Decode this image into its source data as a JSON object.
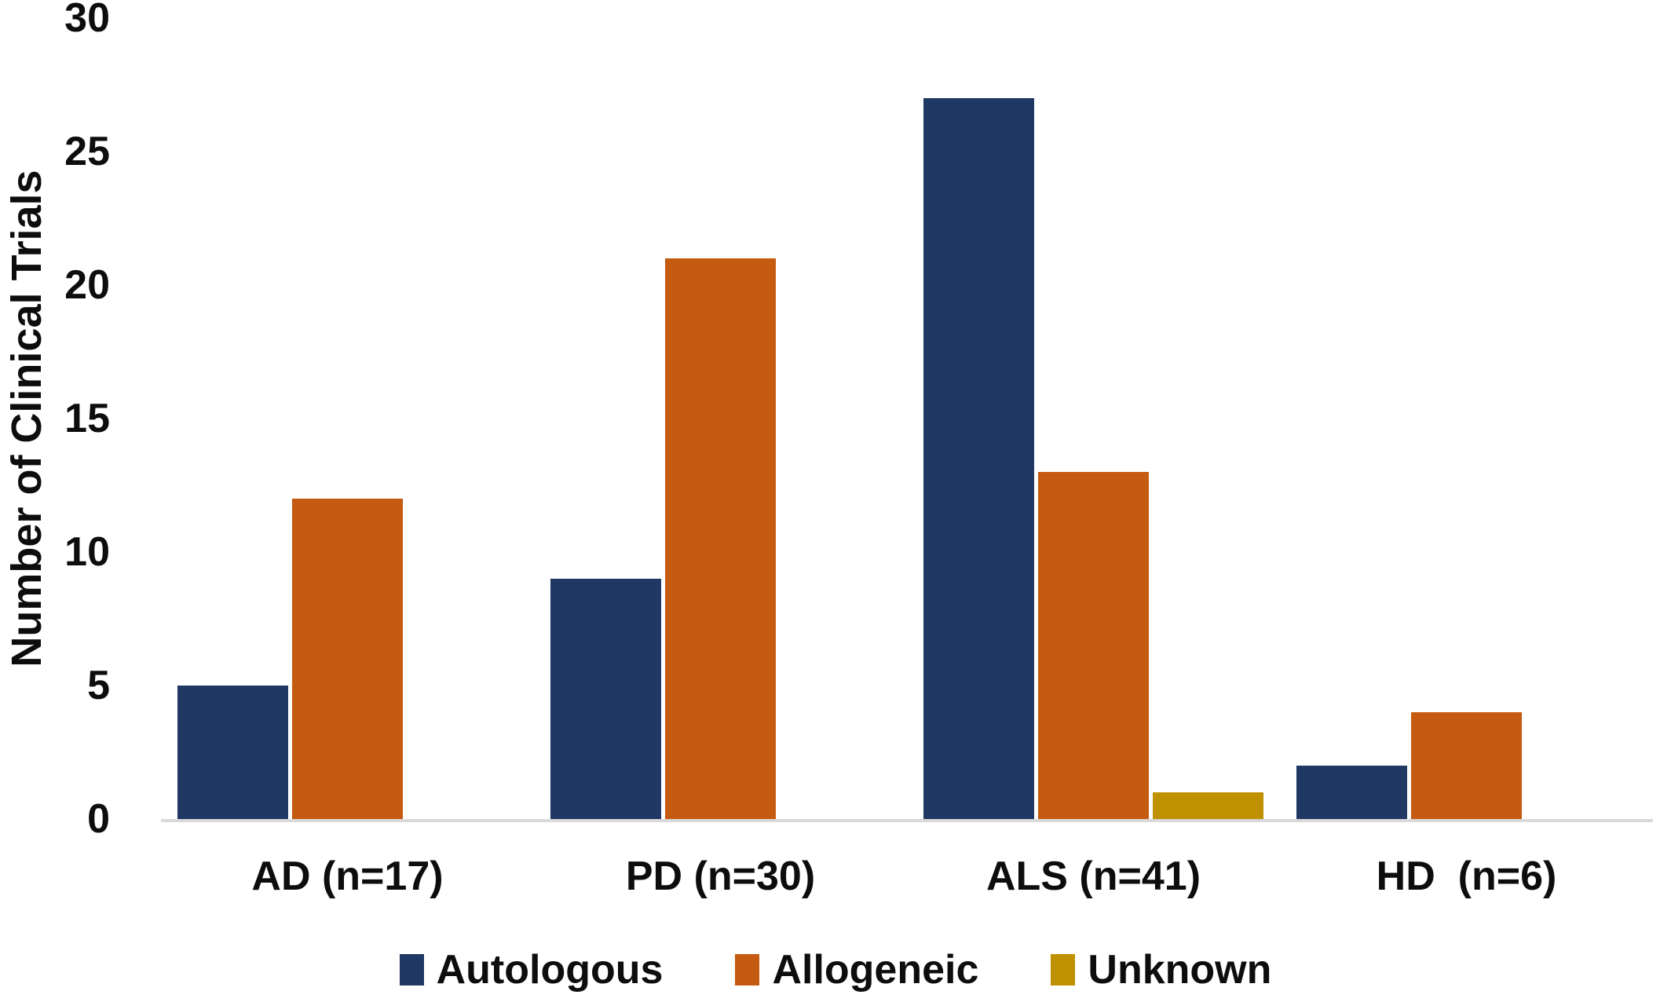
{
  "chart_data": {
    "type": "bar",
    "title": "",
    "xlabel": "",
    "ylabel": "Number of Clinical Trials",
    "categories": [
      "AD (n=17)",
      "PD (n=30)",
      "ALS (n=41)",
      "HD  (n=6)"
    ],
    "series": [
      {
        "name": "Autologous",
        "color": "#1F3864",
        "values": [
          5,
          9,
          27,
          2
        ]
      },
      {
        "name": "Allogeneic",
        "color": "#C55A11",
        "values": [
          12,
          21,
          13,
          4
        ]
      },
      {
        "name": "Unknown",
        "color": "#BF9000",
        "values": [
          0,
          0,
          1,
          0
        ]
      }
    ],
    "ylim": [
      0,
      30
    ],
    "yticks": [
      0,
      5,
      10,
      15,
      20,
      25,
      30
    ],
    "grid": false,
    "legend_position": "bottom",
    "axis_line_color": "#D9D9D9",
    "text_color": "#0D0D0D",
    "background_color": "#FFFFFF"
  }
}
